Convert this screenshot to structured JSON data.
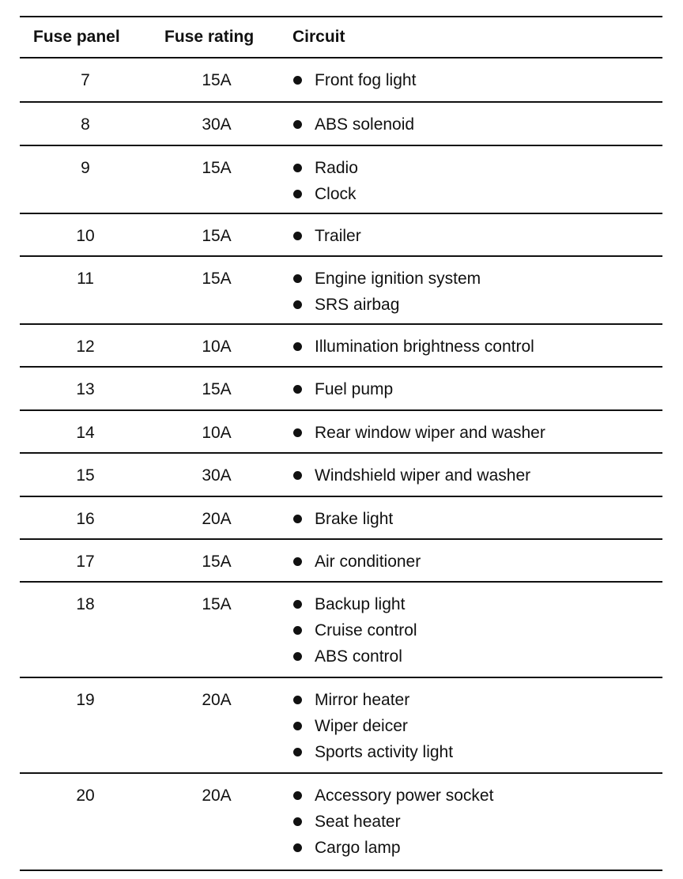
{
  "headers": {
    "fuse_panel": "Fuse panel",
    "fuse_rating": "Fuse rating",
    "circuit": "Circuit"
  },
  "rows": [
    {
      "panel": "7",
      "rating": "15A",
      "circuits": [
        "Front fog light"
      ]
    },
    {
      "panel": "8",
      "rating": "30A",
      "circuits": [
        "ABS solenoid"
      ]
    },
    {
      "panel": "9",
      "rating": "15A",
      "circuits": [
        "Radio",
        "Clock"
      ]
    },
    {
      "panel": "10",
      "rating": "15A",
      "circuits": [
        "Trailer"
      ]
    },
    {
      "panel": "11",
      "rating": "15A",
      "circuits": [
        "Engine ignition system",
        "SRS airbag"
      ]
    },
    {
      "panel": "12",
      "rating": "10A",
      "circuits": [
        "Illumination brightness control"
      ]
    },
    {
      "panel": "13",
      "rating": "15A",
      "circuits": [
        "Fuel pump"
      ]
    },
    {
      "panel": "14",
      "rating": "10A",
      "circuits": [
        "Rear window wiper and washer"
      ]
    },
    {
      "panel": "15",
      "rating": "30A",
      "circuits": [
        "Windshield wiper and washer"
      ]
    },
    {
      "panel": "16",
      "rating": "20A",
      "circuits": [
        "Brake light"
      ]
    },
    {
      "panel": "17",
      "rating": "15A",
      "circuits": [
        "Air conditioner"
      ]
    },
    {
      "panel": "18",
      "rating": "15A",
      "circuits": [
        "Backup light",
        "Cruise control",
        "ABS control"
      ]
    },
    {
      "panel": "19",
      "rating": "20A",
      "circuits": [
        "Mirror heater",
        "Wiper deicer",
        "Sports activity light"
      ]
    },
    {
      "panel": "20",
      "rating": "20A",
      "circuits": [
        "Accessory power socket",
        "Seat heater",
        "Cargo lamp"
      ]
    }
  ]
}
